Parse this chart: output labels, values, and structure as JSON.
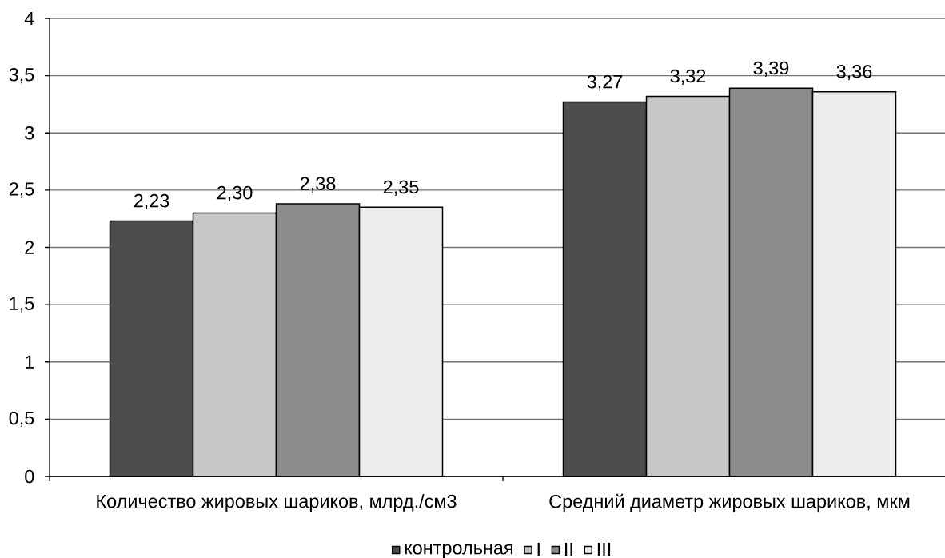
{
  "chart_data": {
    "type": "bar",
    "categories": [
      "Количество жировых шариков, млрд./см3",
      "Средний диаметр жировых шариков, мкм"
    ],
    "series": [
      {
        "name": "контрольная",
        "color": "#4d4d4d",
        "values": [
          2.23,
          3.27
        ],
        "value_labels": [
          "2,23",
          "3,27"
        ]
      },
      {
        "name": "I",
        "color": "#c8c8c8",
        "values": [
          2.3,
          3.32
        ],
        "value_labels": [
          "2,30",
          "3,32"
        ]
      },
      {
        "name": "II",
        "color": "#8c8c8c",
        "values": [
          2.38,
          3.39
        ],
        "value_labels": [
          "2,38",
          "3,39"
        ]
      },
      {
        "name": "III",
        "color": "#ececec",
        "values": [
          2.35,
          3.36
        ],
        "value_labels": [
          "2,35",
          "3,36"
        ]
      }
    ],
    "ylim": [
      0,
      4
    ],
    "yticks": [
      0,
      {
        "value": 0.5,
        "label": "0,5"
      },
      1,
      {
        "value": 1.5,
        "label": "1,5"
      },
      2,
      {
        "value": 2.5,
        "label": "2,5"
      },
      3,
      {
        "value": 3.5,
        "label": "3,5"
      },
      4
    ],
    "grid": "y",
    "legend": "bottom"
  }
}
